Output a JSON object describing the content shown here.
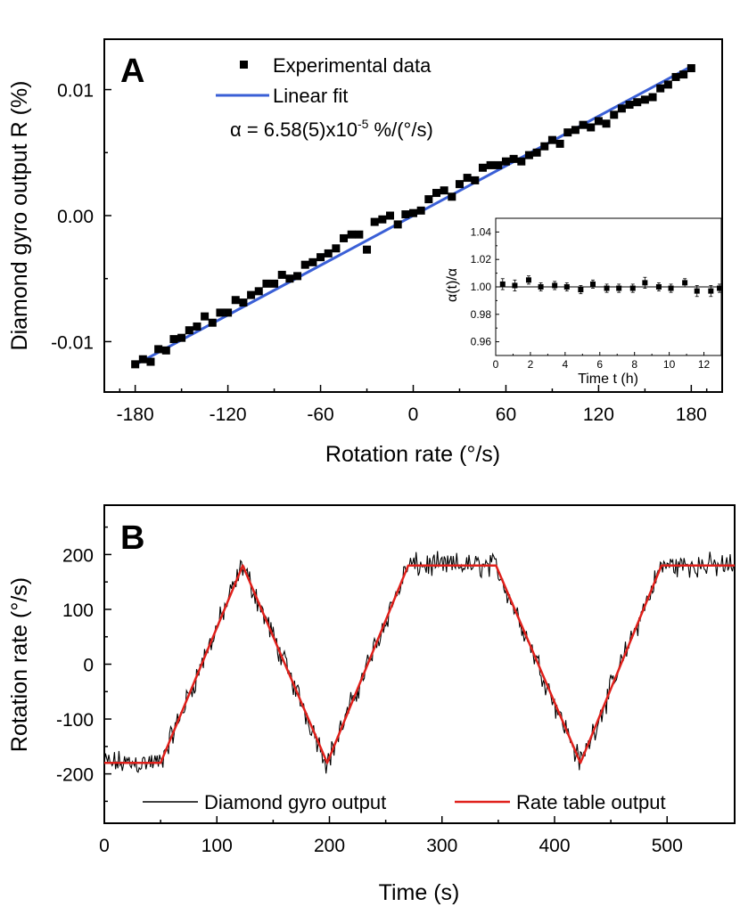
{
  "chart_data": [
    {
      "panel": "A",
      "type": "scatter",
      "xlabel": "Rotation rate (°/s)",
      "ylabel": "Diamond gyro output R (%)",
      "xlim": [
        -200,
        200
      ],
      "ylim": [
        -0.014,
        0.014
      ],
      "xticks": [
        -180,
        -120,
        -60,
        0,
        60,
        120,
        180
      ],
      "xtick_labels": [
        "-180",
        "-120",
        "-60",
        "0",
        "60",
        "120",
        "180"
      ],
      "yticks": [
        -0.01,
        0.0,
        0.01
      ],
      "ytick_labels": [
        "-0.01",
        "0.00",
        "0.01"
      ],
      "legend": {
        "placement": "top-left",
        "entries": [
          "Experimental data",
          "Linear fit"
        ],
        "annotation_prefix": "α = 6.58(5)x10",
        "annotation_exp": "-5",
        "annotation_suffix": " %/(°/s)"
      },
      "series": [
        {
          "name": "Experimental data",
          "marker": "square",
          "color": "#000000",
          "x": [
            -180,
            -175,
            -170,
            -165,
            -160,
            -155,
            -150,
            -145,
            -140,
            -135,
            -130,
            -125,
            -120,
            -115,
            -110,
            -105,
            -100,
            -95,
            -90,
            -85,
            -80,
            -75,
            -70,
            -65,
            -60,
            -55,
            -50,
            -45,
            -40,
            -35,
            -30,
            -25,
            -20,
            -15,
            -10,
            -5,
            0,
            5,
            10,
            15,
            20,
            25,
            30,
            35,
            40,
            45,
            50,
            55,
            60,
            65,
            70,
            75,
            80,
            85,
            90,
            95,
            100,
            105,
            110,
            115,
            120,
            125,
            130,
            135,
            140,
            145,
            150,
            155,
            160,
            165,
            170,
            175,
            180
          ],
          "y": [
            -0.0118,
            -0.0114,
            -0.0116,
            -0.0106,
            -0.0107,
            -0.0098,
            -0.0097,
            -0.0091,
            -0.0088,
            -0.008,
            -0.0085,
            -0.0077,
            -0.0077,
            -0.0067,
            -0.0069,
            -0.0063,
            -0.006,
            -0.0054,
            -0.0054,
            -0.0047,
            -0.005,
            -0.0048,
            -0.0039,
            -0.0037,
            -0.0033,
            -0.003,
            -0.0026,
            -0.0018,
            -0.0015,
            -0.0015,
            -0.0027,
            -0.0005,
            -0.0003,
            0.0,
            -0.0007,
            0.0001,
            0.0002,
            0.0004,
            0.0013,
            0.0018,
            0.002,
            0.0015,
            0.0025,
            0.003,
            0.0028,
            0.0038,
            0.004,
            0.004,
            0.0043,
            0.0045,
            0.0043,
            0.0048,
            0.005,
            0.0055,
            0.006,
            0.0057,
            0.0066,
            0.0068,
            0.0072,
            0.007,
            0.0075,
            0.0073,
            0.008,
            0.0085,
            0.0088,
            0.009,
            0.0092,
            0.0094,
            0.0101,
            0.0104,
            0.011,
            0.0112,
            0.0117
          ]
        },
        {
          "name": "Linear fit",
          "type": "line",
          "color": "#3a5fd6",
          "x": [
            -180,
            180
          ],
          "y": [
            -0.01184,
            0.01184
          ]
        }
      ],
      "inset": {
        "type": "scatter",
        "xlabel": "Time t (h)",
        "ylabel": "α(t)/α",
        "xlim": [
          0,
          13
        ],
        "ylim": [
          0.95,
          1.05
        ],
        "xticks": [
          0,
          2,
          4,
          6,
          8,
          10,
          12
        ],
        "xtick_labels": [
          "0",
          "2",
          "4",
          "6",
          "8",
          "10",
          "12"
        ],
        "yticks": [
          0.96,
          0.98,
          1.0,
          1.02,
          1.04
        ],
        "ytick_labels": [
          "0.96",
          "0.98",
          "1.00",
          "1.02",
          "1.04"
        ],
        "reference_line": 1.0,
        "x": [
          0.4,
          1.1,
          1.9,
          2.6,
          3.4,
          4.1,
          4.9,
          5.6,
          6.4,
          7.1,
          7.9,
          8.6,
          9.4,
          10.1,
          10.9,
          11.6,
          12.4,
          12.9
        ],
        "y": [
          1.002,
          1.001,
          1.005,
          1.0,
          1.001,
          1.0,
          0.998,
          1.002,
          0.999,
          0.999,
          0.999,
          1.003,
          1.0,
          0.999,
          1.003,
          0.997,
          0.997,
          0.999
        ],
        "yerr": [
          0.004,
          0.004,
          0.003,
          0.003,
          0.003,
          0.003,
          0.003,
          0.003,
          0.003,
          0.003,
          0.003,
          0.004,
          0.003,
          0.003,
          0.003,
          0.004,
          0.004,
          0.003
        ]
      }
    },
    {
      "panel": "B",
      "type": "line",
      "xlabel": "Time (s)",
      "ylabel": "Rotation rate (°/s)",
      "xlim": [
        0,
        560
      ],
      "ylim": [
        -290,
        290
      ],
      "xticks": [
        0,
        100,
        200,
        300,
        400,
        500
      ],
      "xtick_labels": [
        "0",
        "100",
        "200",
        "300",
        "400",
        "500"
      ],
      "yticks": [
        -200,
        -100,
        0,
        100,
        200
      ],
      "ytick_labels": [
        "-200",
        "-100",
        "0",
        "100",
        "200"
      ],
      "legend": {
        "placement": "bottom",
        "entries": [
          "Diamond gyro output",
          "Rate table output"
        ]
      },
      "series": [
        {
          "name": "Diamond gyro output",
          "color": "#000000",
          "kind": "noisy trace following the rate table output, noise amplitude about ±25 °/s",
          "sample_interval_s": 1,
          "noise_amplitude": 25
        },
        {
          "name": "Rate table output",
          "color": "#e0201b",
          "x": [
            0,
            50,
            123,
            198,
            270,
            348,
            423,
            495,
            560
          ],
          "y": [
            -180,
            -180,
            180,
            -180,
            180,
            180,
            -180,
            180,
            180
          ]
        }
      ]
    }
  ]
}
